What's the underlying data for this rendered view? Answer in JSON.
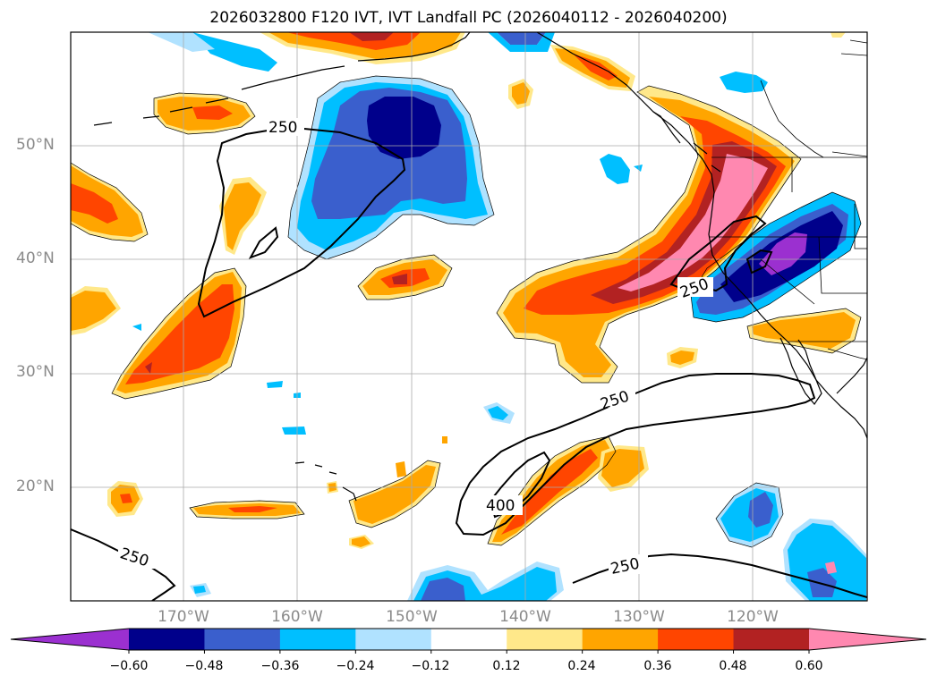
{
  "title": "2026032800 F120 IVT, IVT Landfall PC (2026040112 - 2026040200)",
  "lat_labels": [
    "50°N",
    "40°N",
    "30°N",
    "20°N"
  ],
  "lon_labels": [
    "170°W",
    "160°W",
    "150°W",
    "140°W",
    "130°W",
    "120°W"
  ],
  "contour_labels": [
    "250",
    "250",
    "250",
    "250",
    "250",
    "400"
  ],
  "colorbar": {
    "ticks": [
      "−0.60",
      "−0.48",
      "−0.36",
      "−0.24",
      "−0.12",
      "0.12",
      "0.24",
      "0.36",
      "0.48",
      "0.60"
    ],
    "colors": [
      "#9b30d0",
      "#00008b",
      "#3a5fcd",
      "#00bfff",
      "#b0e2ff",
      "#ffffff",
      "#ffe88a",
      "#ffa500",
      "#ff4500",
      "#b22222",
      "#ff88b0"
    ]
  },
  "colors": {
    "neg_low": "#b0e2ff",
    "neg_mid": "#00bfff",
    "neg_high": "#3a5fcd",
    "neg_max": "#00008b",
    "neg_ext": "#9b30d0",
    "pos_low": "#ffe88a",
    "pos_mid": "#ffa500",
    "pos_high": "#ff4500",
    "pos_max": "#b22222",
    "pos_ext": "#ff88b0"
  }
}
